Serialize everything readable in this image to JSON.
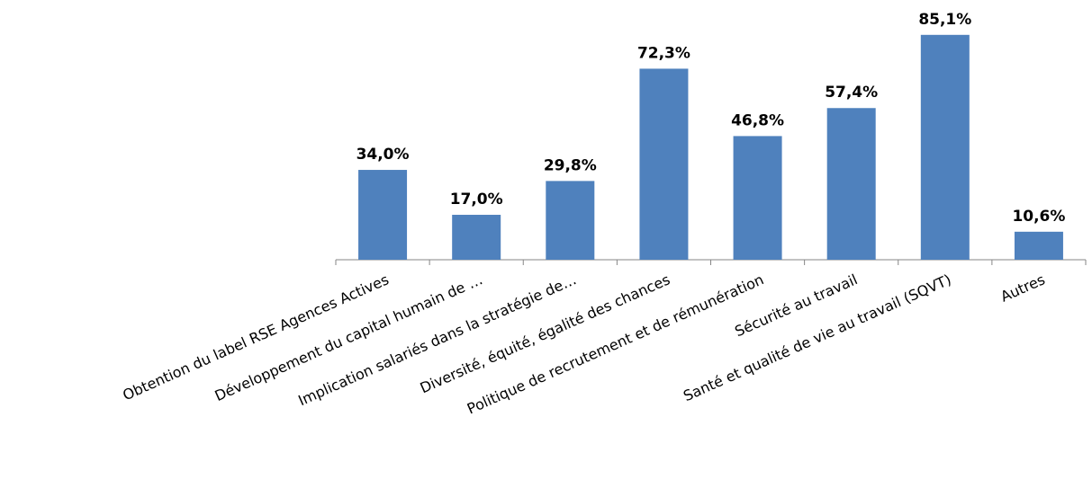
{
  "chart_data": {
    "type": "bar",
    "categories": [
      "Obtention du label RSE Agences Actives",
      "Développement du capital humain de …",
      "Implication salariés dans la stratégie de…",
      "Diversité, équité, égalité des chances",
      "Politique de recrutement et de rémunération",
      "Sécurité au travail",
      "Santé et qualité de vie au travail (SQVT)",
      "Autres"
    ],
    "values": [
      34.0,
      17.0,
      29.8,
      72.3,
      46.8,
      57.4,
      85.1,
      10.6
    ],
    "value_labels": [
      "34,0%",
      "17,0%",
      "29,8%",
      "72,3%",
      "46,8%",
      "57,4%",
      "85,1%",
      "10,6%"
    ],
    "color": "#4f81bd"
  }
}
